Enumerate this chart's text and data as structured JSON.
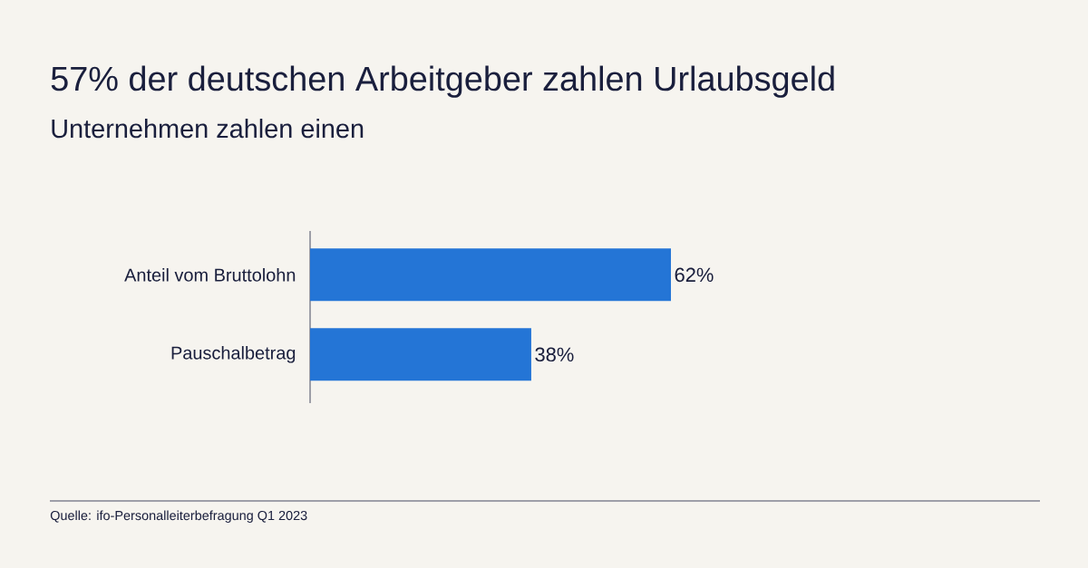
{
  "chart_data": {
    "type": "bar",
    "orientation": "horizontal",
    "title": "57% der deutschen Arbeitgeber zahlen Urlaubsgeld",
    "subtitle": "Unternehmen zahlen einen",
    "categories": [
      "Anteil vom Bruttolohn",
      "Pauschalbetrag"
    ],
    "values": [
      62,
      38
    ],
    "value_labels": [
      "62%",
      "38%"
    ],
    "color": "#2475d6",
    "annotations": [
      "Quelle: ifo-Personalleiterbefragung Q1 2023"
    ]
  }
}
